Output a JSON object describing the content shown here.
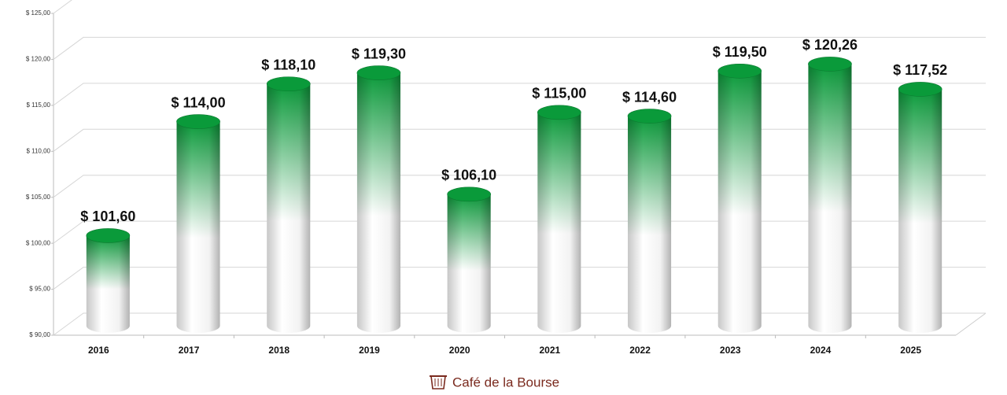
{
  "chart_data": {
    "type": "bar",
    "categories": [
      "2016",
      "2017",
      "2018",
      "2019",
      "2020",
      "2021",
      "2022",
      "2023",
      "2024",
      "2025"
    ],
    "values": [
      101.6,
      114.0,
      118.1,
      119.3,
      106.1,
      115.0,
      114.6,
      119.5,
      120.26,
      117.52
    ],
    "value_labels": [
      "$ 101,60",
      "$ 114,00",
      "$ 118,10",
      "$ 119,30",
      "$ 106,10",
      "$ 115,00",
      "$ 114,60",
      "$ 119,50",
      "$ 120,26",
      "$ 117,52"
    ],
    "color": "#0a9a3a",
    "ylim": [
      90,
      125
    ],
    "yticks": [
      {
        "value": 90,
        "label": "$ 90,00"
      },
      {
        "value": 95,
        "label": "$ 95,00"
      },
      {
        "value": 100,
        "label": "$ 100,00"
      },
      {
        "value": 105,
        "label": "$ 105,00"
      },
      {
        "value": 110,
        "label": "$ 110,00"
      },
      {
        "value": 115,
        "label": "$ 115,00"
      },
      {
        "value": 120,
        "label": "$ 120,00"
      },
      {
        "value": 125,
        "label": "$ 125,00"
      }
    ],
    "grid": true
  },
  "watermark": "Café de la Bourse"
}
